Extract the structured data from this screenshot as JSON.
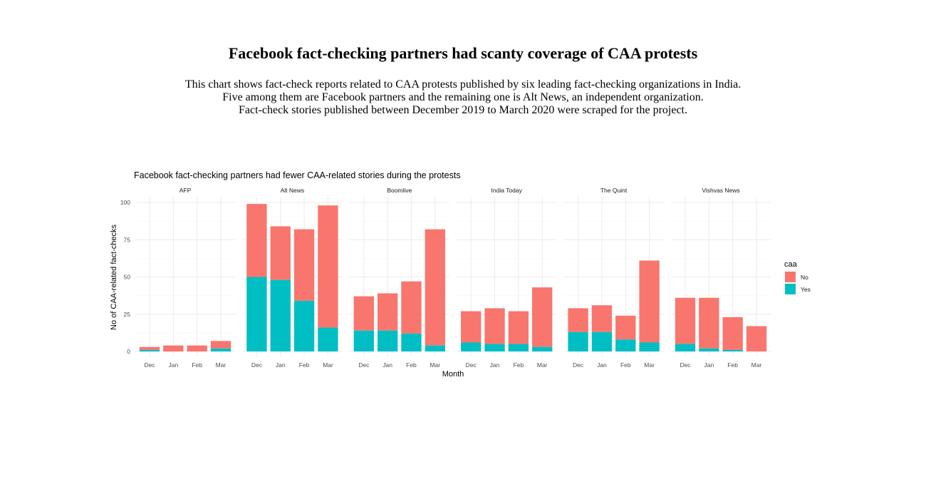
{
  "page": {
    "title": "Facebook fact-checking partners had scanty coverage of CAA protests",
    "description": [
      "This chart shows fact-check reports related to CAA protests published by six leading fact-checking organizations in India.",
      "Five among them are Facebook partners and the remaining one is Alt News, an independent organization.",
      "Fact-check stories published between December 2019 to March 2020 were scraped for the project."
    ]
  },
  "chart_data": {
    "type": "bar",
    "stacked": true,
    "faceted": true,
    "title": "Facebook fact-checking partners had fewer CAA-related stories during the protests",
    "xlabel": "Month",
    "ylabel": "No of CAA-related fact-checks",
    "ylim": [
      0,
      100
    ],
    "yticks": [
      0,
      25,
      50,
      75,
      100
    ],
    "grid": true,
    "legend": {
      "title": "caa",
      "placement": "right"
    },
    "categories": [
      "Dec",
      "Jan",
      "Feb",
      "Mar"
    ],
    "series": [
      {
        "name": "No",
        "color": "#F8766D"
      },
      {
        "name": "Yes",
        "color": "#00BFC4"
      }
    ],
    "facets": [
      {
        "name": "AFP",
        "no": [
          2,
          4,
          4,
          5
        ],
        "yes": [
          1,
          0,
          0,
          2
        ]
      },
      {
        "name": "Alt News",
        "no": [
          49,
          36,
          48,
          82
        ],
        "yes": [
          50,
          48,
          34,
          16
        ]
      },
      {
        "name": "Boomlive",
        "no": [
          23,
          25,
          35,
          78
        ],
        "yes": [
          14,
          14,
          12,
          4
        ]
      },
      {
        "name": "India Today",
        "no": [
          21,
          24,
          22,
          40
        ],
        "yes": [
          6,
          5,
          5,
          3
        ]
      },
      {
        "name": "The Quint",
        "no": [
          16,
          18,
          16,
          55
        ],
        "yes": [
          13,
          13,
          8,
          6
        ]
      },
      {
        "name": "Vishvas News",
        "no": [
          31,
          34,
          22,
          17
        ],
        "yes": [
          5,
          2,
          1,
          0
        ]
      }
    ]
  }
}
